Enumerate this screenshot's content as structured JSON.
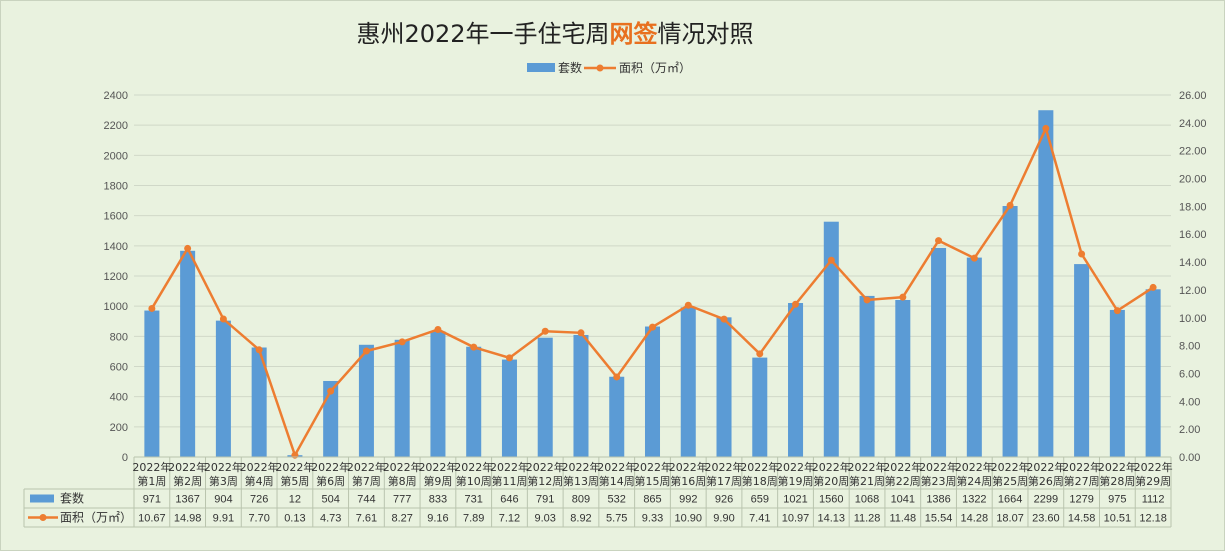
{
  "title": {
    "prefix": "惠州2022年一手住宅周",
    "highlight": "网签",
    "suffix": "情况对照"
  },
  "colors": {
    "bar": "#5b9bd5",
    "line": "#ed7d31",
    "background": "#e9f2df",
    "grid": "#d0d8c8"
  },
  "chart_data": {
    "type": "bar",
    "title": "惠州2022年一手住宅周网签情况对照",
    "categories": [
      [
        "2022年",
        "第1周"
      ],
      [
        "2022年",
        "第2周"
      ],
      [
        "2022年",
        "第3周"
      ],
      [
        "2022年",
        "第4周"
      ],
      [
        "2022年",
        "第5周"
      ],
      [
        "2022年",
        "第6周"
      ],
      [
        "2022年",
        "第7周"
      ],
      [
        "2022年",
        "第8周"
      ],
      [
        "2022年",
        "第9周"
      ],
      [
        "2022年",
        "第10周"
      ],
      [
        "2022年",
        "第11周"
      ],
      [
        "2022年",
        "第12周"
      ],
      [
        "2022年",
        "第13周"
      ],
      [
        "2022年",
        "第14周"
      ],
      [
        "2022年",
        "第15周"
      ],
      [
        "2022年",
        "第16周"
      ],
      [
        "2022年",
        "第17周"
      ],
      [
        "2022年",
        "第18周"
      ],
      [
        "2022年",
        "第19周"
      ],
      [
        "2022年",
        "第20周"
      ],
      [
        "2022年",
        "第21周"
      ],
      [
        "2022年",
        "第22周"
      ],
      [
        "2022年",
        "第23周"
      ],
      [
        "2022年",
        "第24周"
      ],
      [
        "2022年",
        "第25周"
      ],
      [
        "2022年",
        "第26周"
      ],
      [
        "2022年",
        "第27周"
      ],
      [
        "2022年",
        "第28周"
      ],
      [
        "2022年",
        "第29周"
      ]
    ],
    "series": [
      {
        "name": "套数",
        "type": "bar",
        "axis": "left",
        "values": [
          971,
          1367,
          904,
          726,
          12,
          504,
          744,
          777,
          833,
          731,
          646,
          791,
          809,
          532,
          865,
          992,
          926,
          659,
          1021,
          1560,
          1068,
          1041,
          1386,
          1322,
          1664,
          2299,
          1279,
          975,
          1112
        ]
      },
      {
        "name": "面积（万㎡）",
        "type": "line",
        "axis": "right",
        "values": [
          "10.67",
          "14.98",
          "9.91",
          "7.70",
          "0.13",
          "4.73",
          "7.61",
          "8.27",
          "9.16",
          "7.89",
          "7.12",
          "9.03",
          "8.92",
          "5.75",
          "9.33",
          "10.90",
          "9.90",
          "7.41",
          "10.97",
          "14.13",
          "11.28",
          "11.48",
          "15.54",
          "14.28",
          "18.07",
          "23.60",
          "14.58",
          "10.51",
          "12.18"
        ]
      }
    ],
    "left_axis": {
      "ylim": [
        0,
        2400
      ],
      "ticks": [
        "0",
        "200",
        "400",
        "600",
        "800",
        "1000",
        "1200",
        "1400",
        "1600",
        "1800",
        "2000",
        "2200",
        "2400"
      ]
    },
    "right_axis": {
      "ylim": [
        0,
        26
      ],
      "ticks": [
        "0.00",
        "2.00",
        "4.00",
        "6.00",
        "8.00",
        "10.00",
        "12.00",
        "14.00",
        "16.00",
        "18.00",
        "20.00",
        "22.00",
        "24.00",
        "26.00"
      ]
    },
    "grid": true,
    "legend": "top-center",
    "data_table": true
  }
}
